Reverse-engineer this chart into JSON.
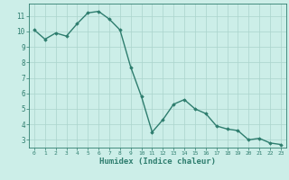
{
  "x": [
    0,
    1,
    2,
    3,
    4,
    5,
    6,
    7,
    8,
    9,
    10,
    11,
    12,
    13,
    14,
    15,
    16,
    17,
    18,
    19,
    20,
    21,
    22,
    23
  ],
  "y": [
    10.1,
    9.5,
    9.9,
    9.7,
    10.5,
    11.2,
    11.3,
    10.8,
    10.1,
    7.7,
    5.8,
    3.5,
    4.3,
    5.3,
    5.6,
    5.0,
    4.7,
    3.9,
    3.7,
    3.6,
    3.0,
    3.1,
    2.8,
    2.7
  ],
  "line_color": "#2e7d6e",
  "marker": "D",
  "markersize": 1.8,
  "linewidth": 1.0,
  "xlabel": "Humidex (Indice chaleur)",
  "xlabel_fontsize": 6.5,
  "bg_color": "#cceee8",
  "grid_color": "#aad4cc",
  "tick_color": "#2e7d6e",
  "label_color": "#2e7d6e",
  "ylim": [
    2.5,
    11.8
  ],
  "xlim": [
    -0.5,
    23.5
  ],
  "yticks": [
    3,
    4,
    5,
    6,
    7,
    8,
    9,
    10,
    11
  ],
  "xticks": [
    0,
    1,
    2,
    3,
    4,
    5,
    6,
    7,
    8,
    9,
    10,
    11,
    12,
    13,
    14,
    15,
    16,
    17,
    18,
    19,
    20,
    21,
    22,
    23
  ]
}
